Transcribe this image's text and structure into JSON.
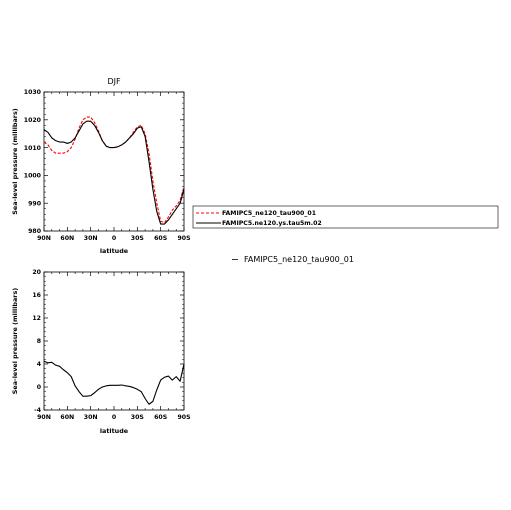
{
  "chart_data": [
    {
      "type": "line",
      "title": "DJF",
      "xlabel": "latitude",
      "ylabel": "Sea-level pressure (millibars)",
      "xlim": [
        90,
        -90
      ],
      "ylim": [
        980,
        1030
      ],
      "x_tick_values": [
        90,
        60,
        30,
        0,
        -30,
        -60,
        -90
      ],
      "x_tick_labels": [
        "90N",
        "60N",
        "30N",
        "0",
        "30S",
        "60S",
        "90S"
      ],
      "y_ticks": [
        "980",
        "990",
        "1000",
        "1010",
        "1020",
        "1030"
      ],
      "legend": "right",
      "series": [
        {
          "name": "FAMIPC5_ne120_tau900_01",
          "color": "#ff0000",
          "dash": "dashed",
          "x": [
            90,
            85,
            80,
            75,
            70,
            65,
            60,
            55,
            50,
            45,
            40,
            35,
            30,
            25,
            20,
            15,
            10,
            5,
            0,
            -5,
            -10,
            -15,
            -20,
            -25,
            -30,
            -35,
            -40,
            -45,
            -50,
            -55,
            -60,
            -65,
            -70,
            -75,
            -80,
            -85,
            -90
          ],
          "y": [
            1012,
            1011,
            1009,
            1008,
            1008,
            1008,
            1008.5,
            1010,
            1013,
            1017,
            1020,
            1021,
            1021,
            1019,
            1016,
            1012.5,
            1010.5,
            1010,
            1010,
            1010.3,
            1011,
            1012,
            1013.5,
            1015.5,
            1017.5,
            1018,
            1015,
            1008,
            998,
            990,
            983.5,
            983,
            985,
            987.5,
            989,
            991,
            996
          ]
        },
        {
          "name": "FAMIPC5.ne120.ys.tau5m.02",
          "color": "#000000",
          "dash": "solid",
          "x": [
            90,
            85,
            80,
            75,
            70,
            65,
            60,
            55,
            50,
            45,
            40,
            35,
            30,
            25,
            20,
            15,
            10,
            5,
            0,
            -5,
            -10,
            -15,
            -20,
            -25,
            -30,
            -35,
            -40,
            -45,
            -50,
            -55,
            -60,
            -65,
            -70,
            -75,
            -80,
            -85,
            -90
          ],
          "y": [
            1016.5,
            1015.5,
            1013.5,
            1012.5,
            1012,
            1012,
            1011.5,
            1012,
            1013.5,
            1016,
            1018.5,
            1019.5,
            1019.5,
            1018,
            1015.5,
            1012.5,
            1010.5,
            1010,
            1010,
            1010.3,
            1011,
            1012,
            1013.5,
            1015,
            1017,
            1017.5,
            1014,
            1005,
            995,
            987,
            982.5,
            982.5,
            984,
            986,
            988,
            990,
            995
          ]
        }
      ]
    },
    {
      "type": "line",
      "title": "",
      "xlabel": "latitude",
      "ylabel": "Sea-level pressure (millibars)",
      "xlim": [
        90,
        -90
      ],
      "ylim": [
        -4,
        20
      ],
      "x_tick_values": [
        90,
        60,
        30,
        0,
        -30,
        -60,
        -90
      ],
      "x_tick_labels": [
        "90N",
        "60N",
        "30N",
        "0",
        "30S",
        "60S",
        "90S"
      ],
      "y_ticks": [
        "-4",
        "0",
        "4",
        "8",
        "12",
        "16",
        "20"
      ],
      "legend_text": "FAMIPC5_ne120_tau900_01",
      "legend": "right",
      "series": [
        {
          "color": "#000000",
          "dash": "solid",
          "x": [
            90,
            85,
            80,
            75,
            70,
            65,
            60,
            55,
            50,
            45,
            40,
            35,
            30,
            25,
            20,
            15,
            10,
            5,
            0,
            -5,
            -10,
            -15,
            -20,
            -25,
            -30,
            -35,
            -40,
            -45,
            -50,
            -55,
            -60,
            -65,
            -70,
            -75,
            -80,
            -85,
            -90
          ],
          "y": [
            4.5,
            4.2,
            4.3,
            3.8,
            3.6,
            3.0,
            2.5,
            1.8,
            0.2,
            -0.8,
            -1.6,
            -1.6,
            -1.5,
            -1.0,
            -0.4,
            0.0,
            0.2,
            0.3,
            0.3,
            0.3,
            0.35,
            0.2,
            0.1,
            -0.1,
            -0.4,
            -0.8,
            -2.0,
            -3.0,
            -2.5,
            -0.5,
            1.2,
            1.7,
            1.9,
            1.2,
            1.8,
            1.0,
            4.0
          ]
        }
      ]
    }
  ]
}
